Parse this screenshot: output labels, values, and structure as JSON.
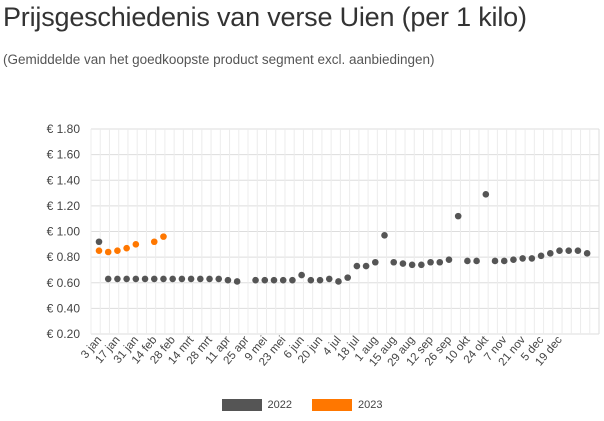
{
  "title": "Prijsgeschiedenis van verse Uien (per 1 kilo)",
  "subtitle": "(Gemiddelde van het goedkoopste product segment excl. aanbiedingen)",
  "colors": {
    "s2022": "#555555",
    "s2023": "#ff7700",
    "grid": "#dddddd"
  },
  "chart_data": {
    "type": "scatter",
    "title": "Prijsgeschiedenis van verse Uien (per 1 kilo)",
    "subtitle": "(Gemiddelde van het goedkoopste product segment excl. aanbiedingen)",
    "xlabel": "",
    "ylabel": "",
    "ylim": [
      0.2,
      1.8
    ],
    "y_ticks": [
      "€ 0.20",
      "€ 0.40",
      "€ 0.60",
      "€ 0.80",
      "€ 1.00",
      "€ 1.20",
      "€ 1.40",
      "€ 1.60",
      "€ 1.80"
    ],
    "y_tick_values": [
      0.2,
      0.4,
      0.6,
      0.8,
      1.0,
      1.2,
      1.4,
      1.6,
      1.8
    ],
    "x_ticks": [
      "3 jan",
      "17 jan",
      "31 jan",
      "14 feb",
      "28 feb",
      "14 mrt",
      "28 mrt",
      "11 apr",
      "25 apr",
      "9 mei",
      "23 mei",
      "6 jun",
      "20 jun",
      "4 jul",
      "18 jul",
      "1 aug",
      "15 aug",
      "29 aug",
      "12 sep",
      "26 sep",
      "10 okt",
      "24 okt",
      "7 nov",
      "21 nov",
      "5 dec",
      "19 dec"
    ],
    "grid": true,
    "legend_position": "bottom-center",
    "series": [
      {
        "name": "2022",
        "points": [
          [
            0,
            0.92
          ],
          [
            1,
            0.63
          ],
          [
            2,
            0.63
          ],
          [
            3,
            0.63
          ],
          [
            4,
            0.63
          ],
          [
            5,
            0.63
          ],
          [
            6,
            0.63
          ],
          [
            7,
            0.63
          ],
          [
            8,
            0.63
          ],
          [
            9,
            0.63
          ],
          [
            10,
            0.63
          ],
          [
            11,
            0.63
          ],
          [
            12,
            0.63
          ],
          [
            13,
            0.63
          ],
          [
            14,
            0.62
          ],
          [
            15,
            0.61
          ],
          [
            17,
            0.62
          ],
          [
            18,
            0.62
          ],
          [
            19,
            0.62
          ],
          [
            20,
            0.62
          ],
          [
            21,
            0.62
          ],
          [
            22,
            0.66
          ],
          [
            23,
            0.62
          ],
          [
            24,
            0.62
          ],
          [
            25,
            0.63
          ],
          [
            26,
            0.61
          ],
          [
            27,
            0.64
          ],
          [
            28,
            0.73
          ],
          [
            29,
            0.73
          ],
          [
            30,
            0.76
          ],
          [
            31,
            0.97
          ],
          [
            32,
            0.76
          ],
          [
            33,
            0.75
          ],
          [
            34,
            0.74
          ],
          [
            35,
            0.74
          ],
          [
            36,
            0.76
          ],
          [
            37,
            0.76
          ],
          [
            38,
            0.78
          ],
          [
            39,
            1.12
          ],
          [
            40,
            0.77
          ],
          [
            41,
            0.77
          ],
          [
            42,
            1.29
          ],
          [
            43,
            0.77
          ],
          [
            44,
            0.77
          ],
          [
            45,
            0.78
          ],
          [
            46,
            0.79
          ],
          [
            47,
            0.79
          ],
          [
            48,
            0.81
          ],
          [
            49,
            0.83
          ],
          [
            50,
            0.85
          ],
          [
            51,
            0.85
          ],
          [
            52,
            0.85
          ],
          [
            53,
            0.83
          ]
        ]
      },
      {
        "name": "2023",
        "points": [
          [
            0,
            0.85
          ],
          [
            1,
            0.84
          ],
          [
            2,
            0.85
          ],
          [
            3,
            0.87
          ],
          [
            4,
            0.9
          ],
          [
            6,
            0.92
          ],
          [
            7,
            0.96
          ]
        ]
      }
    ]
  }
}
